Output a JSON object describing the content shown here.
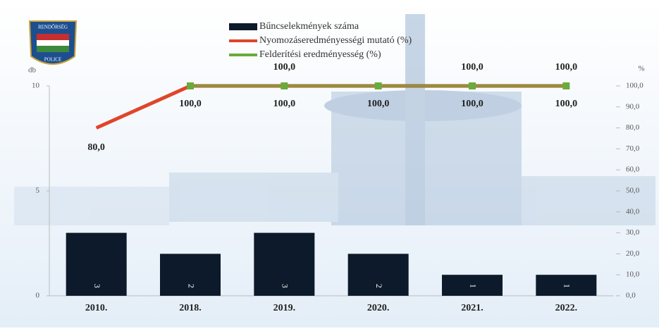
{
  "logo": {
    "top": "RENDŐRSÉG",
    "bottom": "POLICE"
  },
  "chart_data": {
    "type": "bar",
    "categories": [
      "2010.",
      "2018.",
      "2019.",
      "2020.",
      "2021.",
      "2022."
    ],
    "ylabel": "db",
    "y2label": "%",
    "ylim": [
      0,
      10
    ],
    "yticks": [
      0,
      5,
      10
    ],
    "y2lim": [
      0,
      100
    ],
    "y2ticks": [
      {
        "value": 0,
        "label": "0,0"
      },
      {
        "value": 10,
        "label": "10,0"
      },
      {
        "value": 20,
        "label": "20,0"
      },
      {
        "value": 30,
        "label": "30,0"
      },
      {
        "value": 40,
        "label": "40,0"
      },
      {
        "value": 50,
        "label": "50,0"
      },
      {
        "value": 60,
        "label": "60,0"
      },
      {
        "value": 70,
        "label": "70,0"
      },
      {
        "value": 80,
        "label": "80,0"
      },
      {
        "value": 90,
        "label": "90,0"
      },
      {
        "value": 100,
        "label": "100,0"
      }
    ],
    "series": [
      {
        "name": "Bűncselekmények száma",
        "type": "bar",
        "color": "#0d1a2b",
        "values": [
          3,
          2,
          3,
          2,
          1,
          1
        ]
      },
      {
        "name": "Nyomozáseredményességi mutató (%)",
        "type": "line",
        "axis": "y2",
        "color": "#e0452a",
        "values": [
          80,
          100,
          100,
          100,
          100,
          100
        ],
        "value_labels": [
          "80,0",
          "100,0",
          "100,0",
          "100,0",
          "100,0",
          "100,0"
        ]
      },
      {
        "name": "Felderítési eredményesség (%)",
        "type": "line",
        "axis": "y2",
        "color": "#6aab3c",
        "values": [
          null,
          100,
          100,
          100,
          100,
          100
        ],
        "value_labels": [
          null,
          null,
          "100,0",
          null,
          "100,0",
          "100,0"
        ]
      }
    ]
  }
}
